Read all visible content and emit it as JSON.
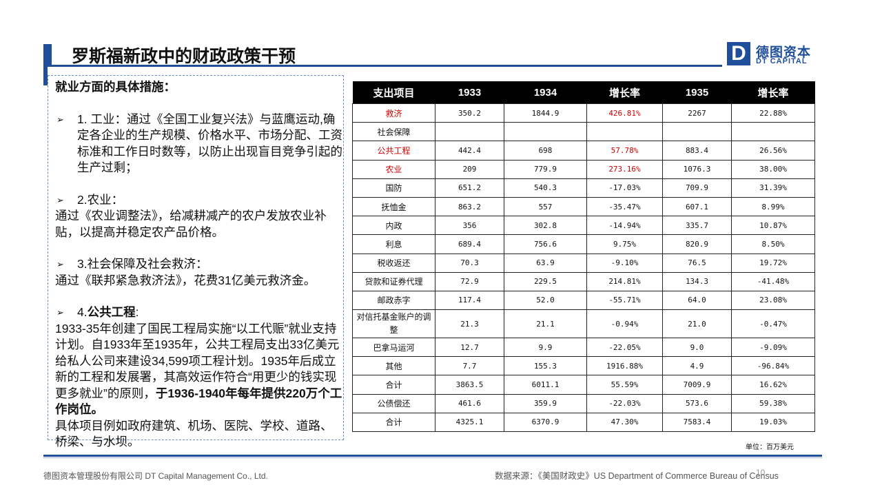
{
  "header": {
    "title": "罗斯福新政中的财政政策干预",
    "logo_letter": "D",
    "logo_cn": "德图资本",
    "logo_en": "DT CAPITAL"
  },
  "left_panel": {
    "heading": "就业方面的具体措施：",
    "items": [
      {
        "label": "1. 工业：通过《全国工业复兴法》与蓝鹰运动,确定各企业的生产规模、价格水平、市场分配、工资标准和工作日时数等，以防止出现盲目竞争引起的生产过剩；"
      },
      {
        "label": "2.农业：",
        "body": "通过《农业调整法》，给减耕减产的农户发放农业补贴，以提高并稳定农产品价格。"
      },
      {
        "label": "3.社会保障及社会救济：",
        "body": "通过《联邦紧急救济法》，花费31亿美元救济金。"
      },
      {
        "label_prefix": "4.",
        "label_bold": "公共工程",
        "label_suffix": ":",
        "body_normal": "1933-35年创建了国民工程局实施“以工代赈”就业支持计划。自1933年至1935年，公共工程局支出33亿美元给私人公司来建设34,599项工程计划。1935年后成立新的工程和发展署，其高效运作符合“用更少的钱实现更多就业”的原则，",
        "body_bold": "于1936-1940年每年提供220万个工作岗位。",
        "body_tail": "具体项目例如政府建筑、机场、医院、学校、道路、桥梁、与水坝。"
      }
    ]
  },
  "table": {
    "headers": [
      "支出项目",
      "1933",
      "1934",
      "增长率",
      "1935",
      "增长率"
    ],
    "rows": [
      {
        "item": "救济",
        "y1933": "350.2",
        "y1934": "1844.9",
        "g1": "426.81%",
        "y1935": "2267",
        "g2": "22.88%",
        "red": true
      },
      {
        "item": "社会保障",
        "y1933": "",
        "y1934": "",
        "g1": "",
        "y1935": "",
        "g2": "",
        "red": false
      },
      {
        "item": "公共工程",
        "y1933": "442.4",
        "y1934": "698",
        "g1": "57.78%",
        "y1935": "883.4",
        "g2": "26.56%",
        "red": true
      },
      {
        "item": "农业",
        "y1933": "209",
        "y1934": "779.9",
        "g1": "273.16%",
        "y1935": "1076.3",
        "g2": "38.00%",
        "red": true
      },
      {
        "item": "国防",
        "y1933": "651.2",
        "y1934": "540.3",
        "g1": "-17.03%",
        "y1935": "709.9",
        "g2": "31.39%",
        "red": false
      },
      {
        "item": "抚恤金",
        "y1933": "863.2",
        "y1934": "557",
        "g1": "-35.47%",
        "y1935": "607.1",
        "g2": "8.99%",
        "red": false
      },
      {
        "item": "内政",
        "y1933": "356",
        "y1934": "302.8",
        "g1": "-14.94%",
        "y1935": "335.7",
        "g2": "10.87%",
        "red": false
      },
      {
        "item": "利息",
        "y1933": "689.4",
        "y1934": "756.6",
        "g1": "9.75%",
        "y1935": "820.9",
        "g2": "8.50%",
        "red": false
      },
      {
        "item": "税收返还",
        "y1933": "70.3",
        "y1934": "63.9",
        "g1": "-9.10%",
        "y1935": "76.5",
        "g2": "19.72%",
        "red": false
      },
      {
        "item": "贷款和证券代理",
        "y1933": "72.9",
        "y1934": "229.5",
        "g1": "214.81%",
        "y1935": "134.3",
        "g2": "-41.48%",
        "red": false
      },
      {
        "item": "邮政赤字",
        "y1933": "117.4",
        "y1934": "52.0",
        "g1": "-55.71%",
        "y1935": "64.0",
        "g2": "23.08%",
        "red": false
      },
      {
        "item": "对信托基金账户的调整",
        "y1933": "21.3",
        "y1934": "21.1",
        "g1": "-0.94%",
        "y1935": "21.0",
        "g2": "-0.47%",
        "red": false,
        "tall": true
      },
      {
        "item": "巴拿马运河",
        "y1933": "12.7",
        "y1934": "9.9",
        "g1": "-22.05%",
        "y1935": "9.0",
        "g2": "-9.09%",
        "red": false
      },
      {
        "item": "其他",
        "y1933": "7.7",
        "y1934": "155.3",
        "g1": "1916.88%",
        "y1935": "4.9",
        "g2": "-96.84%",
        "red": false
      },
      {
        "item": "合计",
        "y1933": "3863.5",
        "y1934": "6011.1",
        "g1": "55.59%",
        "y1935": "7009.9",
        "g2": "16.62%",
        "red": false
      },
      {
        "item": "公债偿还",
        "y1933": "461.6",
        "y1934": "359.9",
        "g1": "-22.03%",
        "y1935": "573.6",
        "g2": "59.38%",
        "red": false
      },
      {
        "item": "合计",
        "y1933": "4325.1",
        "y1934": "6370.9",
        "g1": "47.30%",
        "y1935": "7583.4",
        "g2": "19.03%",
        "red": false
      }
    ],
    "unit": "单位：百万美元"
  },
  "footer": {
    "company": "德图资本管理股份有限公司 DT Capital Management Co., Ltd.",
    "source": "数据来源：《美国财政史》US Department of Commerce Bureau of Census",
    "page": "10"
  },
  "colors": {
    "accent": "#1f4e9a",
    "highlight": "#d00000"
  }
}
